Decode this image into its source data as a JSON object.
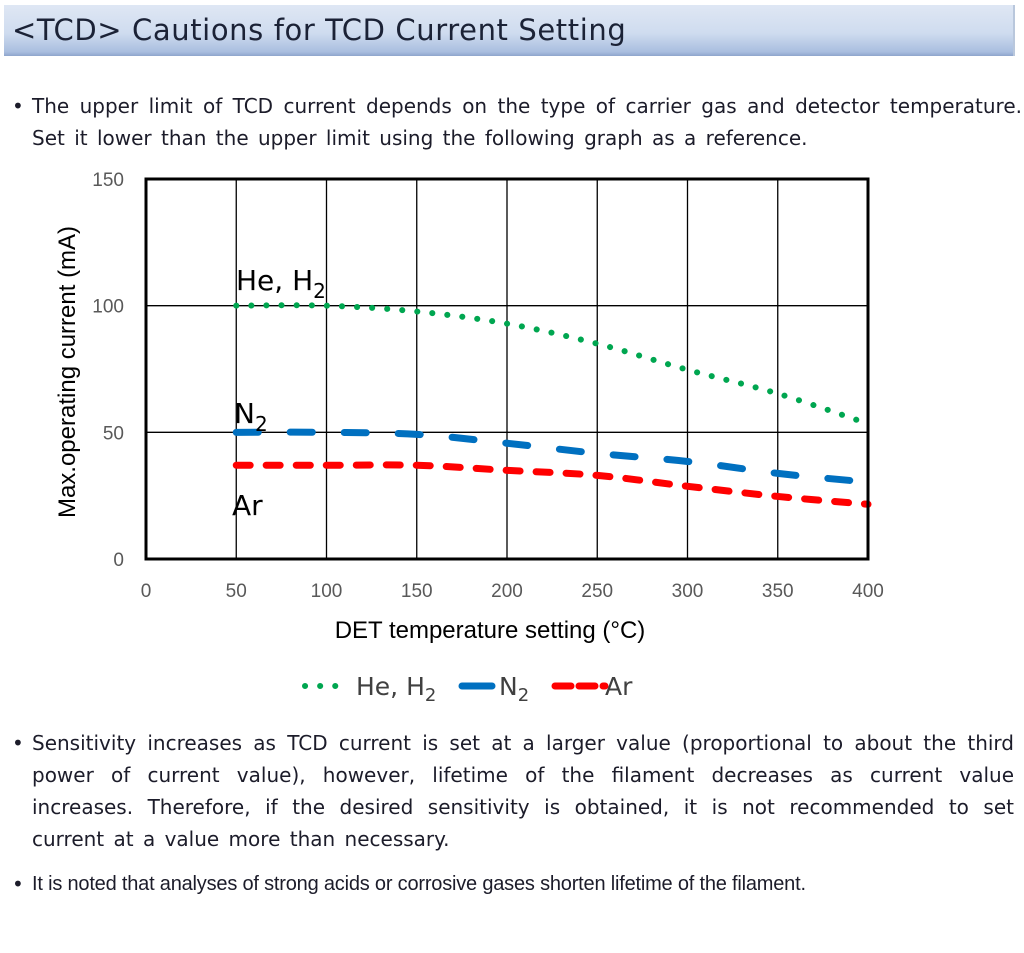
{
  "header": {
    "title": "<TCD> Cautions for TCD Current Setting"
  },
  "paragraphs": [
    {
      "bullet": "•",
      "text": "The upper limit of TCD current depends on the type of carrier gas and detector temperature. Set it lower than the upper limit using the following graph as a reference."
    },
    {
      "bullet": "•",
      "text": "Sensitivity increases as TCD current is set at a larger value (proportional to about the third power of current value), however, lifetime of the filament decreases as current value increases. Therefore, if the desired sensitivity is obtained, it is not recommended to set current at a value more than necessary."
    },
    {
      "bullet": "•",
      "text": "It is noted that analyses of strong acids or corrosive gases shorten lifetime of the filament."
    }
  ],
  "chart_data": {
    "type": "line",
    "title": "",
    "xlabel": "DET temperature setting (°C)",
    "ylabel": "Max.operating current (mA)",
    "xlim": [
      0,
      400
    ],
    "ylim": [
      0,
      150
    ],
    "xticks": [
      0,
      50,
      100,
      150,
      200,
      250,
      300,
      350,
      400
    ],
    "yticks": [
      0,
      50,
      100,
      150
    ],
    "grid": true,
    "legend_position": "bottom",
    "series": [
      {
        "name": "He, H2",
        "label_main": "He, H",
        "label_sub": "2",
        "color": "#00a650",
        "style": "dotted",
        "x": [
          50,
          100,
          150,
          200,
          250,
          300,
          350,
          400
        ],
        "y": [
          100,
          100,
          97.7,
          92.9,
          85,
          74.7,
          65.3,
          53.4
        ]
      },
      {
        "name": "N2",
        "label_main": "N",
        "label_sub": "2",
        "color": "#0070c0",
        "style": "dashed",
        "x": [
          50,
          100,
          150,
          200,
          250,
          300,
          350,
          400
        ],
        "y": [
          50,
          50,
          49.2,
          45.7,
          41.7,
          38.5,
          33.8,
          29.5
        ]
      },
      {
        "name": "Ar",
        "label_main": "Ar",
        "label_sub": "",
        "color": "#ff0000",
        "style": "dashed",
        "x": [
          50,
          100,
          150,
          200,
          250,
          300,
          350,
          400
        ],
        "y": [
          37,
          37,
          37,
          35,
          33,
          28.7,
          24.7,
          21.6
        ]
      }
    ]
  }
}
